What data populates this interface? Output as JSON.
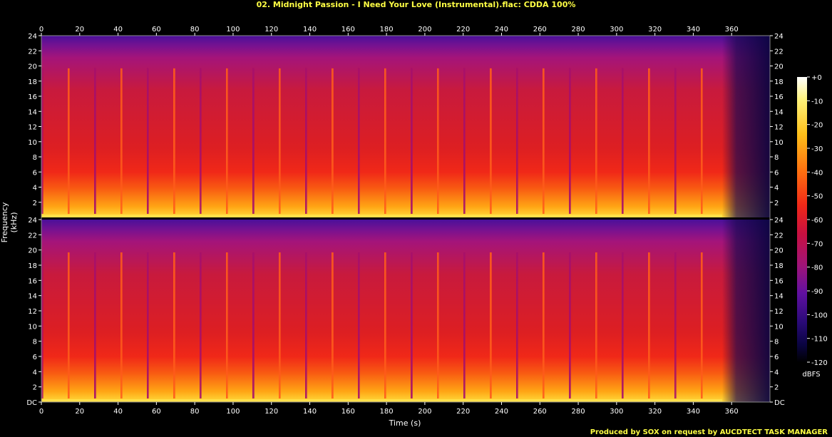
{
  "title": "02. Midnight Passion - I Need Your Love (Instrumental).flac: CDDA 100%",
  "credit": "Produced by SOX on request by AUCDTECT TASK MANAGER",
  "chart_data": {
    "type": "heatmap",
    "title": "02. Midnight Passion - I Need Your Love (Instrumental).flac: CDDA 100%",
    "xlabel": "Time (s)",
    "ylabel": "Frequency (kHz)",
    "xlim": [
      0,
      380
    ],
    "ylim": [
      0,
      24
    ],
    "x_ticks": [
      "0",
      "20",
      "40",
      "60",
      "80",
      "100",
      "120",
      "140",
      "160",
      "180",
      "200",
      "220",
      "240",
      "260",
      "280",
      "300",
      "320",
      "340",
      "360"
    ],
    "y_ticks_top": [
      "2",
      "4",
      "6",
      "8",
      "10",
      "12",
      "14",
      "16",
      "18",
      "20",
      "22",
      "24"
    ],
    "y_ticks_bottom": [
      "DC",
      "2",
      "4",
      "6",
      "8",
      "10",
      "12",
      "14",
      "16",
      "18",
      "20",
      "22",
      "24"
    ],
    "channels": 2,
    "colorbar": {
      "unit": "dBFS",
      "range": [
        -120,
        0
      ],
      "ticks": [
        "+0",
        "-10",
        "-20",
        "-30",
        "-40",
        "-50",
        "-60",
        "-70",
        "-80",
        "-90",
        "-100",
        "-110",
        "-120"
      ]
    },
    "music_end_s": 355
  }
}
